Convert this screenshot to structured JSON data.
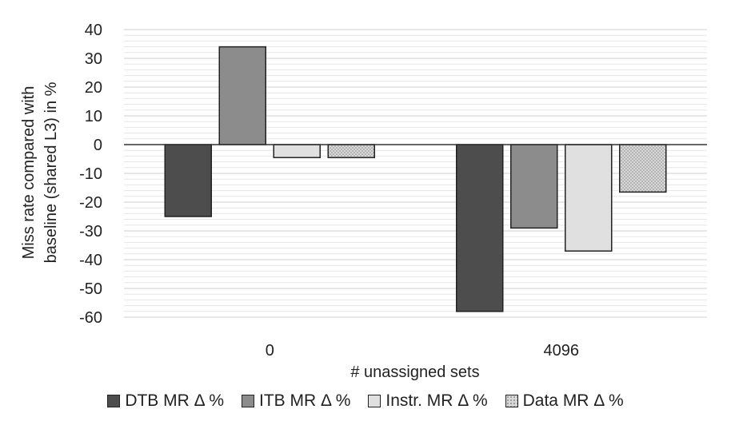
{
  "chart_data": {
    "type": "bar",
    "xlabel": "# unassigned sets",
    "ylabel_lines": [
      "Miss rate compared with",
      "baseline (shared L3) in %"
    ],
    "ylim": [
      -60,
      40
    ],
    "yticks": [
      40,
      30,
      20,
      10,
      0,
      -10,
      -20,
      -30,
      -40,
      -50,
      -60
    ],
    "grid": true,
    "legend_position": "bottom",
    "categories": [
      "0",
      "4096"
    ],
    "series": [
      {
        "name": "DTB MR  Δ %",
        "values": [
          -25,
          -58
        ],
        "color": "#4d4d4d",
        "pattern": "solid"
      },
      {
        "name": "ITB MR Δ %",
        "values": [
          34,
          -29
        ],
        "color": "#8c8c8c",
        "pattern": "solid"
      },
      {
        "name": "Instr. MR Δ %",
        "values": [
          -4.5,
          -37
        ],
        "color": "#e0e0e0",
        "pattern": "solid"
      },
      {
        "name": "Data MR Δ %",
        "values": [
          -4.5,
          -16.5
        ],
        "color": "#d4d4d4",
        "pattern": "dots"
      }
    ]
  }
}
